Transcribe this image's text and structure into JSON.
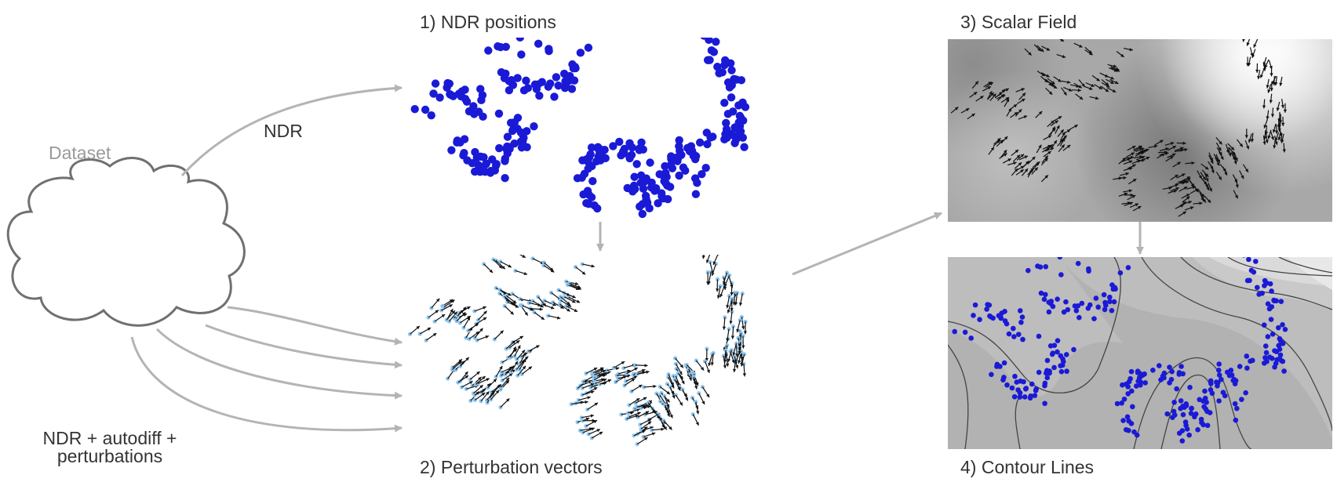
{
  "labels": {
    "dataset": "Dataset",
    "ndr_edge": "NDR",
    "ndr_plus": "NDR + autodiff + perturbations",
    "panel1": "1) NDR positions",
    "panel2": "2) Perturbation vectors",
    "panel3": "3) Scalar Field",
    "panel4": "4) Contour Lines"
  },
  "colors": {
    "point": "#1a1ad6",
    "point_light": "#8fc6ee",
    "arrow": "#111111",
    "connector": "#b4b4b4",
    "cloud_stroke": "#707070",
    "dataset_text": "#9a9a9a",
    "contour_line": "#444444"
  },
  "icons": {
    "dataset": "cloud-icon"
  },
  "clusters": [
    {
      "id": "upper-left-loop"
    },
    {
      "id": "upper-middle"
    },
    {
      "id": "right-column"
    },
    {
      "id": "lower-center"
    },
    {
      "id": "lower-right"
    }
  ]
}
